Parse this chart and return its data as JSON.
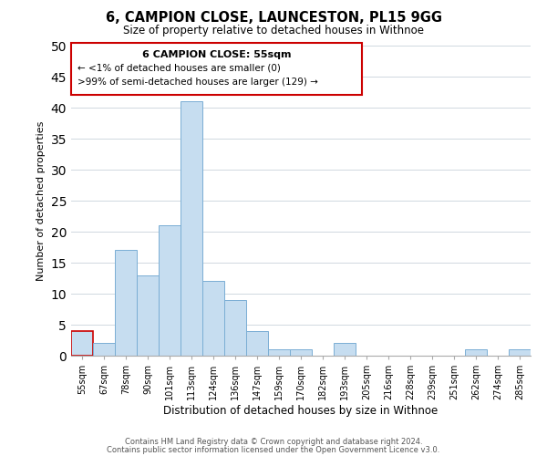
{
  "title1": "6, CAMPION CLOSE, LAUNCESTON, PL15 9GG",
  "title2": "Size of property relative to detached houses in Withnoe",
  "xlabel": "Distribution of detached houses by size in Withnoe",
  "ylabel": "Number of detached properties",
  "bar_labels": [
    "55sqm",
    "67sqm",
    "78sqm",
    "90sqm",
    "101sqm",
    "113sqm",
    "124sqm",
    "136sqm",
    "147sqm",
    "159sqm",
    "170sqm",
    "182sqm",
    "193sqm",
    "205sqm",
    "216sqm",
    "228sqm",
    "239sqm",
    "251sqm",
    "262sqm",
    "274sqm",
    "285sqm"
  ],
  "bar_values": [
    4,
    2,
    17,
    13,
    21,
    41,
    12,
    9,
    4,
    1,
    1,
    0,
    2,
    0,
    0,
    0,
    0,
    0,
    1,
    0,
    1
  ],
  "bar_color": "#c6ddf0",
  "bar_edge_color": "#7aaed4",
  "ylim": [
    0,
    50
  ],
  "yticks": [
    0,
    5,
    10,
    15,
    20,
    25,
    30,
    35,
    40,
    45,
    50
  ],
  "annotation_title": "6 CAMPION CLOSE: 55sqm",
  "annotation_line1": "← <1% of detached houses are smaller (0)",
  "annotation_line2": ">99% of semi-detached houses are larger (129) →",
  "highlight_bar_index": 0,
  "highlight_bar_edge_color": "#cc0000",
  "footer1": "Contains HM Land Registry data © Crown copyright and database right 2024.",
  "footer2": "Contains public sector information licensed under the Open Government Licence v3.0."
}
